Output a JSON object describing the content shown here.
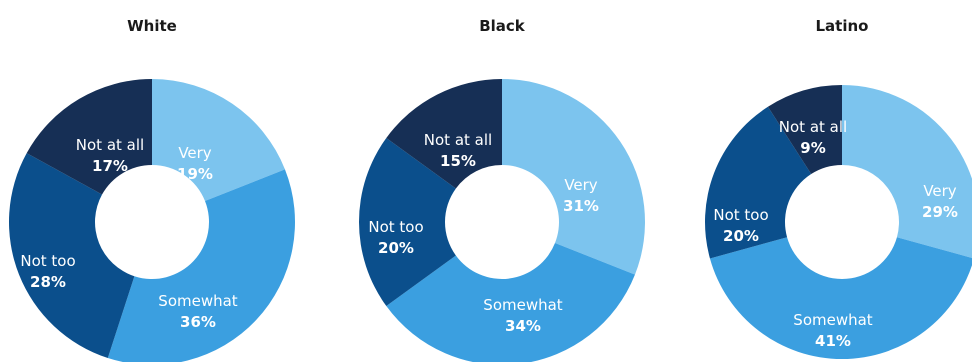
{
  "chart_data": [
    {
      "type": "pie",
      "title": "White",
      "slices": [
        {
          "label": "Very",
          "value": 19,
          "display": "19%",
          "color": "#7cc4ee"
        },
        {
          "label": "Somewhat",
          "value": 36,
          "display": "36%",
          "color": "#3b9fe0"
        },
        {
          "label": "Not too",
          "value": 28,
          "display": "28%",
          "color": "#0b4f8c"
        },
        {
          "label": "Not at all",
          "value": 17,
          "display": "17%",
          "color": "#162f55"
        }
      ]
    },
    {
      "type": "pie",
      "title": "Black",
      "slices": [
        {
          "label": "Very",
          "value": 31,
          "display": "31%",
          "color": "#7cc4ee"
        },
        {
          "label": "Somewhat",
          "value": 34,
          "display": "34%",
          "color": "#3b9fe0"
        },
        {
          "label": "Not too",
          "value": 20,
          "display": "20%",
          "color": "#0b4f8c"
        },
        {
          "label": "Not at all",
          "value": 15,
          "display": "15%",
          "color": "#162f55"
        }
      ]
    },
    {
      "type": "pie",
      "title": "Latino",
      "slices": [
        {
          "label": "Very",
          "value": 29,
          "display": "29%",
          "color": "#7cc4ee"
        },
        {
          "label": "Somewhat",
          "value": 41,
          "display": "41%",
          "color": "#3b9fe0"
        },
        {
          "label": "Not too",
          "value": 20,
          "display": "20%",
          "color": "#0b4f8c"
        },
        {
          "label": "Not at all",
          "value": 9,
          "display": "9%",
          "color": "#162f55"
        }
      ]
    }
  ]
}
